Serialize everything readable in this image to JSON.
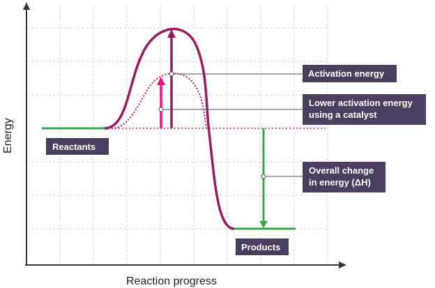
{
  "axes": {
    "x_title": "Reaction progress",
    "y_title": "Energy"
  },
  "labels": {
    "reactants": "Reactants",
    "products": "Products",
    "activation_energy": "Activation energy",
    "catalyst_line1": "Lower activation energy",
    "catalyst_line2": "using a catalyst",
    "enthalpy_line1": "Overall change",
    "enthalpy_line2": "in energy (ΔH)"
  },
  "colors": {
    "uncatalysed_curve": "#9b1b62",
    "catalysed_curve": "#c2185b",
    "catalyst_arrow": "#e6147a",
    "activation_arrow": "#8e1d5e",
    "level_lines": "#3aa64a",
    "label_box": "#4a3f5e",
    "grid": "#d0d0d0"
  }
}
